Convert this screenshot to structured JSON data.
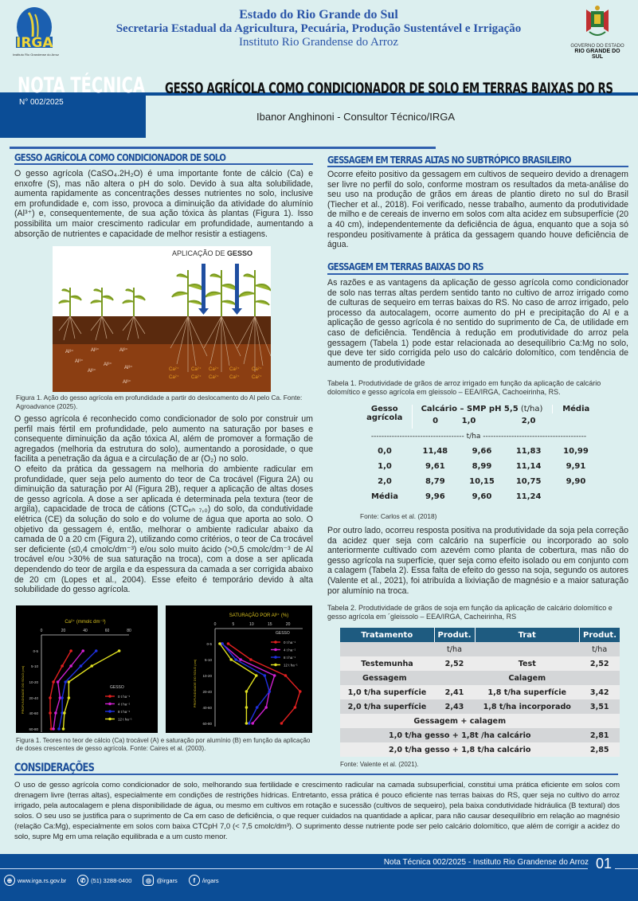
{
  "header": {
    "logo_text": "IRGA",
    "logo_subtext": "Instituto Rio Grandense do Arroz",
    "line1": "Estado do Rio Grande do Sul",
    "line2": "Secretaria Estadual da Agricultura, Pecuária, Produção Sustentável e Irrigação",
    "line3": "Instituto Rio Grandense do Arroz",
    "gov_line1": "GOVERNO DO ESTADO",
    "gov_line2": "RIO GRANDE DO SUL"
  },
  "banner": {
    "label": "NOTA TÉCNICA",
    "number": "N° 002/2025",
    "title": "GESSO AGRÍCOLA COMO CONDICIONADOR DE SOLO EM TERRAS BAIXAS DO RS",
    "author": "Ibanor Anghinoni - Consultor Técnico/IRGA"
  },
  "left": {
    "s1_heading": "GESSO AGRÍCOLA COMO CONDICIONADOR DE SOLO",
    "s1_p1": "O gesso agrícola (CaSO₄.2H₂O) é uma importante fonte de cálcio (Ca) e enxofre (S), mas não altera o pH do solo. Devido à sua alta solubilidade, aumenta rapidamente as concentrações desses nutrientes no solo, inclusive em profundidade e, com isso, provoca a diminuição da atividade do alumínio (Al³⁺) e, consequentemente, de sua ação tóxica às plantas (Figura 1). Isso possibilita um maior crescimento radicular em profundidade, aumentando a absorção de nutrientes e capacidade de melhor resistir a estiagens.",
    "fig1": {
      "title_prefix": "APLICAÇÃO DE ",
      "title_bold": "GESSO",
      "al_label": "Al³⁺",
      "ca_label": "Ca²⁺",
      "caption": "Figura 1. Ação do gesso agrícola em profundidade a partir do deslocamento do Al pelo Ca. Fonte: Agroadvance (2025)."
    },
    "s1_p2": "O gesso agrícola é reconhecido como condicionador de solo por construir um perfil mais fértil em profundidade, pelo aumento na saturação por bases e consequente diminuição da ação tóxica Al, além de promover a formação de agregados (melhoria da estrutura do solo), aumentando a porosidade, o que facilita a penetração da água e a circulação de ar (O₂) no solo.",
    "s1_p3": "O efeito da prática da gessagem na melhoria do ambiente radicular em profundidade, quer seja pelo aumento do teor de Ca trocável (Figura 2A) ou diminuição da saturação por Al (Figura 2B), requer a aplicação de altas doses de gesso agrícola. A dose a ser aplicada é determinada pela textura (teor de argila), capacidade de troca de cátions (CTCₚₕ ₇,₀) do solo, da condutividade elétrica (CE) da solução do solo e do volume de água que aporta ao solo. O objetivo  da gessagem é, então, melhorar o ambiente radicular abaixo da camada de 0 a 20 cm (Figura 2), utilizando como critérios, o teor de Ca trocável ser deficiente (≤0,4 cmolc/dm⁻³) e/ou solo muito ácido (>0,5 cmolc/dm⁻³ de Al trocável e/ou >30% de sua saturação na troca), com a dose a ser aplicada dependendo do teor de argila e da espessura da camada a ser corrigida abaixo de 20 cm (Lopes et al., 2004). Esse efeito é temporário devido à alta solubilidade do gesso agrícola.",
    "fig2_caption": "Figura 1. Teores no teor de cálcio (Ca) trocável (A) e saturação por alumínio (B) em função da aplicação de doses crescentes de gesso agrícola. Fonte: Caires et al. (2003)."
  },
  "right": {
    "s2_heading": "GESSAGEM EM TERRAS ALTAS NO SUBTRÓPICO BRASILEIRO",
    "s2_p1": "Ocorre efeito positivo da gessagem em cultivos de sequeiro devido a drenagem ser livre no perfil do solo, conforme mostram os resultados da meta-análise do seu uso na produção de grãos em áreas de plantio direto no sul do Brasil (Tiecher et al., 2018). Foi verificado, nesse trabalho, aumento da produtividade de milho e de cereais de inverno em solos com alta acidez em subsuperfície (20 a 40 cm), independentemente da deficiência de água, enquanto que a soja só respondeu positivamente à prática da gessagem quando houve deficiência de água.",
    "s3_heading": "GESSAGEM EM TERRAS BAIXAS DO RS",
    "s3_p1": "As razões e as vantagens da aplicação de gesso agrícola como condicionador de solo nas terras altas perdem sentido tanto no cultivo de arroz irrigado como de culturas de sequeiro em terras baixas do RS. No caso de arroz irrigado, pelo processo da autocalagem, ocorre aumento do pH e precipitação do Al e a aplicação de gesso agrícola é no sentido do suprimento de Ca, de utilidade em caso de deficiência. Tendência à redução em produtividade do arroz pela gessagem (Tabela 1) pode estar relacionada ao desequilíbrio Ca:Mg no solo, que deve ter sido corrigida pelo uso do calcário dolomítico, com tendência de aumento de produtividade",
    "table1": {
      "caption": "Tabela 1. Produtividade de grãos de arroz irrigado em função da aplicação de calcário dolomítico e gesso agrícola em gleissolo – EEA/IRGA, Cachoeirinha, RS.",
      "h_gesso1": "Gesso",
      "h_gesso2": "agrícola",
      "h_calcario": "Calcário – SMP pH 5,5",
      "h_calcario_unit": " (t/ha)",
      "h_media": "Média",
      "sub": [
        "0",
        "1,0",
        "2,0"
      ],
      "unit_row": "------------------------------------ t/ha ----------------------------------------",
      "rows": [
        [
          "0,0",
          "11,48",
          "9,66",
          "11,83",
          "10,99"
        ],
        [
          "1,0",
          "9,61",
          "8,99",
          "11,14",
          "9,91"
        ],
        [
          "2,0",
          "8,79",
          "10,15",
          "10,75",
          "9,90"
        ],
        [
          "Média",
          "9,96",
          "9,60",
          "11,24",
          ""
        ]
      ],
      "source": "Fonte: Carlos et al. (2018)"
    },
    "s3_p2": "Por outro lado, ocorreu resposta positiva na produtividade da soja pela correção da acidez quer seja com calcário na superfície ou incorporado ao solo anteriormente cultivado com azevém como planta de cobertura, mas não do gesso agrícola na superfície, quer seja como efeito isolado ou em conjunto com a calagem (Tabela 2). Essa falta de efeito do gesso na soja, segundo os autores (Valente et al., 2021), foi atribuída a lixiviação de magnésio e a maior saturação por alumínio na troca.",
    "table2": {
      "caption": "Tabela 2. Produtividade de grãos de soja em função da aplicação de calcário dolomítico e gesso agrícola em ´gleissolo – EEA/IRGA, Cacheirinha, RS",
      "headers": [
        "Tratamento",
        "Produt.",
        "Trat",
        "Produt."
      ],
      "unit": "t/ha",
      "r_test": [
        "Testemunha",
        "2,52",
        "Test",
        "2,52"
      ],
      "r_groups": [
        "Gessagem",
        "Calagem"
      ],
      "r1": [
        "1,0 t/ha superfície",
        "2,41",
        "1,8  t/ha superfície",
        "3,42"
      ],
      "r2": [
        "2,0 t/ha  superfície",
        "2,43",
        "1,8 t/ha incorporado",
        "3,51"
      ],
      "r_combo": "Gessagem + calagem",
      "r3": [
        "1,0 t/ha gesso  + 1,8t /ha  calcário",
        "2,81"
      ],
      "r4": [
        "2,0 t/ha gesso + 1,8 t/ha calcário",
        "2,85"
      ],
      "source": "Fonte: Valente et al. (2021)."
    }
  },
  "conclusion": {
    "heading": "CONSIDERAÇÕES",
    "text": "O uso de gesso agrícola como condicionador de solo, melhorando sua fertilidade e crescimento radicular na camada subsuperficial, constitui uma prática eficiente em solos com drenagem livre (terras altas), especialmente em condições de restrições hídricas. Entretanto, essa prática é pouco eficiente nas terras baixas do RS, quer seja no cultivo do arroz irrigado, pela autocalagem e plena disponibilidade de água, ou mesmo em cultivos em rotação e sucessão (cultivos de sequeiro), pela baixa condutividade hidráulica (B textural) dos solos. O seu uso se justifica para o suprimento de Ca em caso de deficiência, o que requer cuidados na quantidade a aplicar, para não causar desequilíbrio em relação ao magnésio (relação Ca:Mg), especialmente em solos com baixa CTCpH 7,0 (< 7,5 cmolc/dm³). O suprimento desse nutriente pode ser pelo calcário dolomítico, que além de corrigir a acidez do solo, supre Mg em uma relação equilibrada e a um custo menor."
  },
  "footer": {
    "note": "Nota Técnica 002/2025 - Instituto Rio Grandense do Arroz",
    "page": "01",
    "website": "www.irga.rs.gov.br",
    "phone": "(51) 3288-0400",
    "instagram": "@irgars",
    "facebook": "/irgars"
  },
  "colors": {
    "brand_blue": "#0b4d96",
    "heading_blue": "#1d4f9a",
    "table_header": "#1e5b80",
    "background": "#dcefef"
  },
  "chart_data": [
    {
      "type": "line",
      "title": "Ca²⁺ (mmolc dm⁻³)",
      "ylabel": "PROFUNDIDADE DO SOLO (cm)",
      "xlim": [
        0,
        80
      ],
      "xticks": [
        "0",
        "20",
        "40",
        "60",
        "80"
      ],
      "categories": [
        "0-5",
        "5-10",
        "10-20",
        "20-40",
        "40-60",
        "60-80"
      ],
      "legend_title": "GESSO",
      "series": [
        {
          "name": "0 t ha⁻¹",
          "color": "#e02020",
          "values": [
            27,
            19,
            11,
            8,
            8,
            9
          ]
        },
        {
          "name": "4 t ha⁻¹",
          "color": "#d020d0",
          "values": [
            38,
            27,
            15,
            17,
            13,
            11
          ]
        },
        {
          "name": "8 t ha⁻¹",
          "color": "#2030e0",
          "values": [
            50,
            36,
            22,
            19,
            19,
            16
          ]
        },
        {
          "name": "12 t ha⁻¹",
          "color": "#e0e020",
          "values": [
            71,
            46,
            25,
            25,
            21,
            20
          ]
        }
      ]
    },
    {
      "type": "line",
      "title": "SATURAÇÃO POR Al³⁺ (%)",
      "ylabel": "PROFUNDIDADE DO SOLO (cm)",
      "xlim": [
        0,
        24
      ],
      "xticks": [
        "0",
        "5",
        "10",
        "15",
        "20"
      ],
      "categories": [
        "0-5",
        "5-10",
        "10-20",
        "20-40",
        "40-60",
        "60-80"
      ],
      "legend_title": "GESSO",
      "series": [
        {
          "name": "0 t ha⁻¹",
          "color": "#e02020",
          "values": [
            3.6,
            9.8,
            19.3,
            23.3,
            21.9,
            18.2
          ]
        },
        {
          "name": "4 t ha⁻¹",
          "color": "#d020d0",
          "values": [
            1.9,
            7.0,
            16.3,
            14.9,
            14.0,
            10.3
          ]
        },
        {
          "name": "8 t ha⁻¹",
          "color": "#2030e0",
          "values": [
            2.0,
            5.7,
            13.6,
            14.9,
            11.5,
            9.3
          ]
        },
        {
          "name": "12 t ha⁻¹",
          "color": "#e0e020",
          "values": [
            1.3,
            4.4,
            11.3,
            8.6,
            8.6,
            8.6
          ]
        }
      ]
    }
  ]
}
